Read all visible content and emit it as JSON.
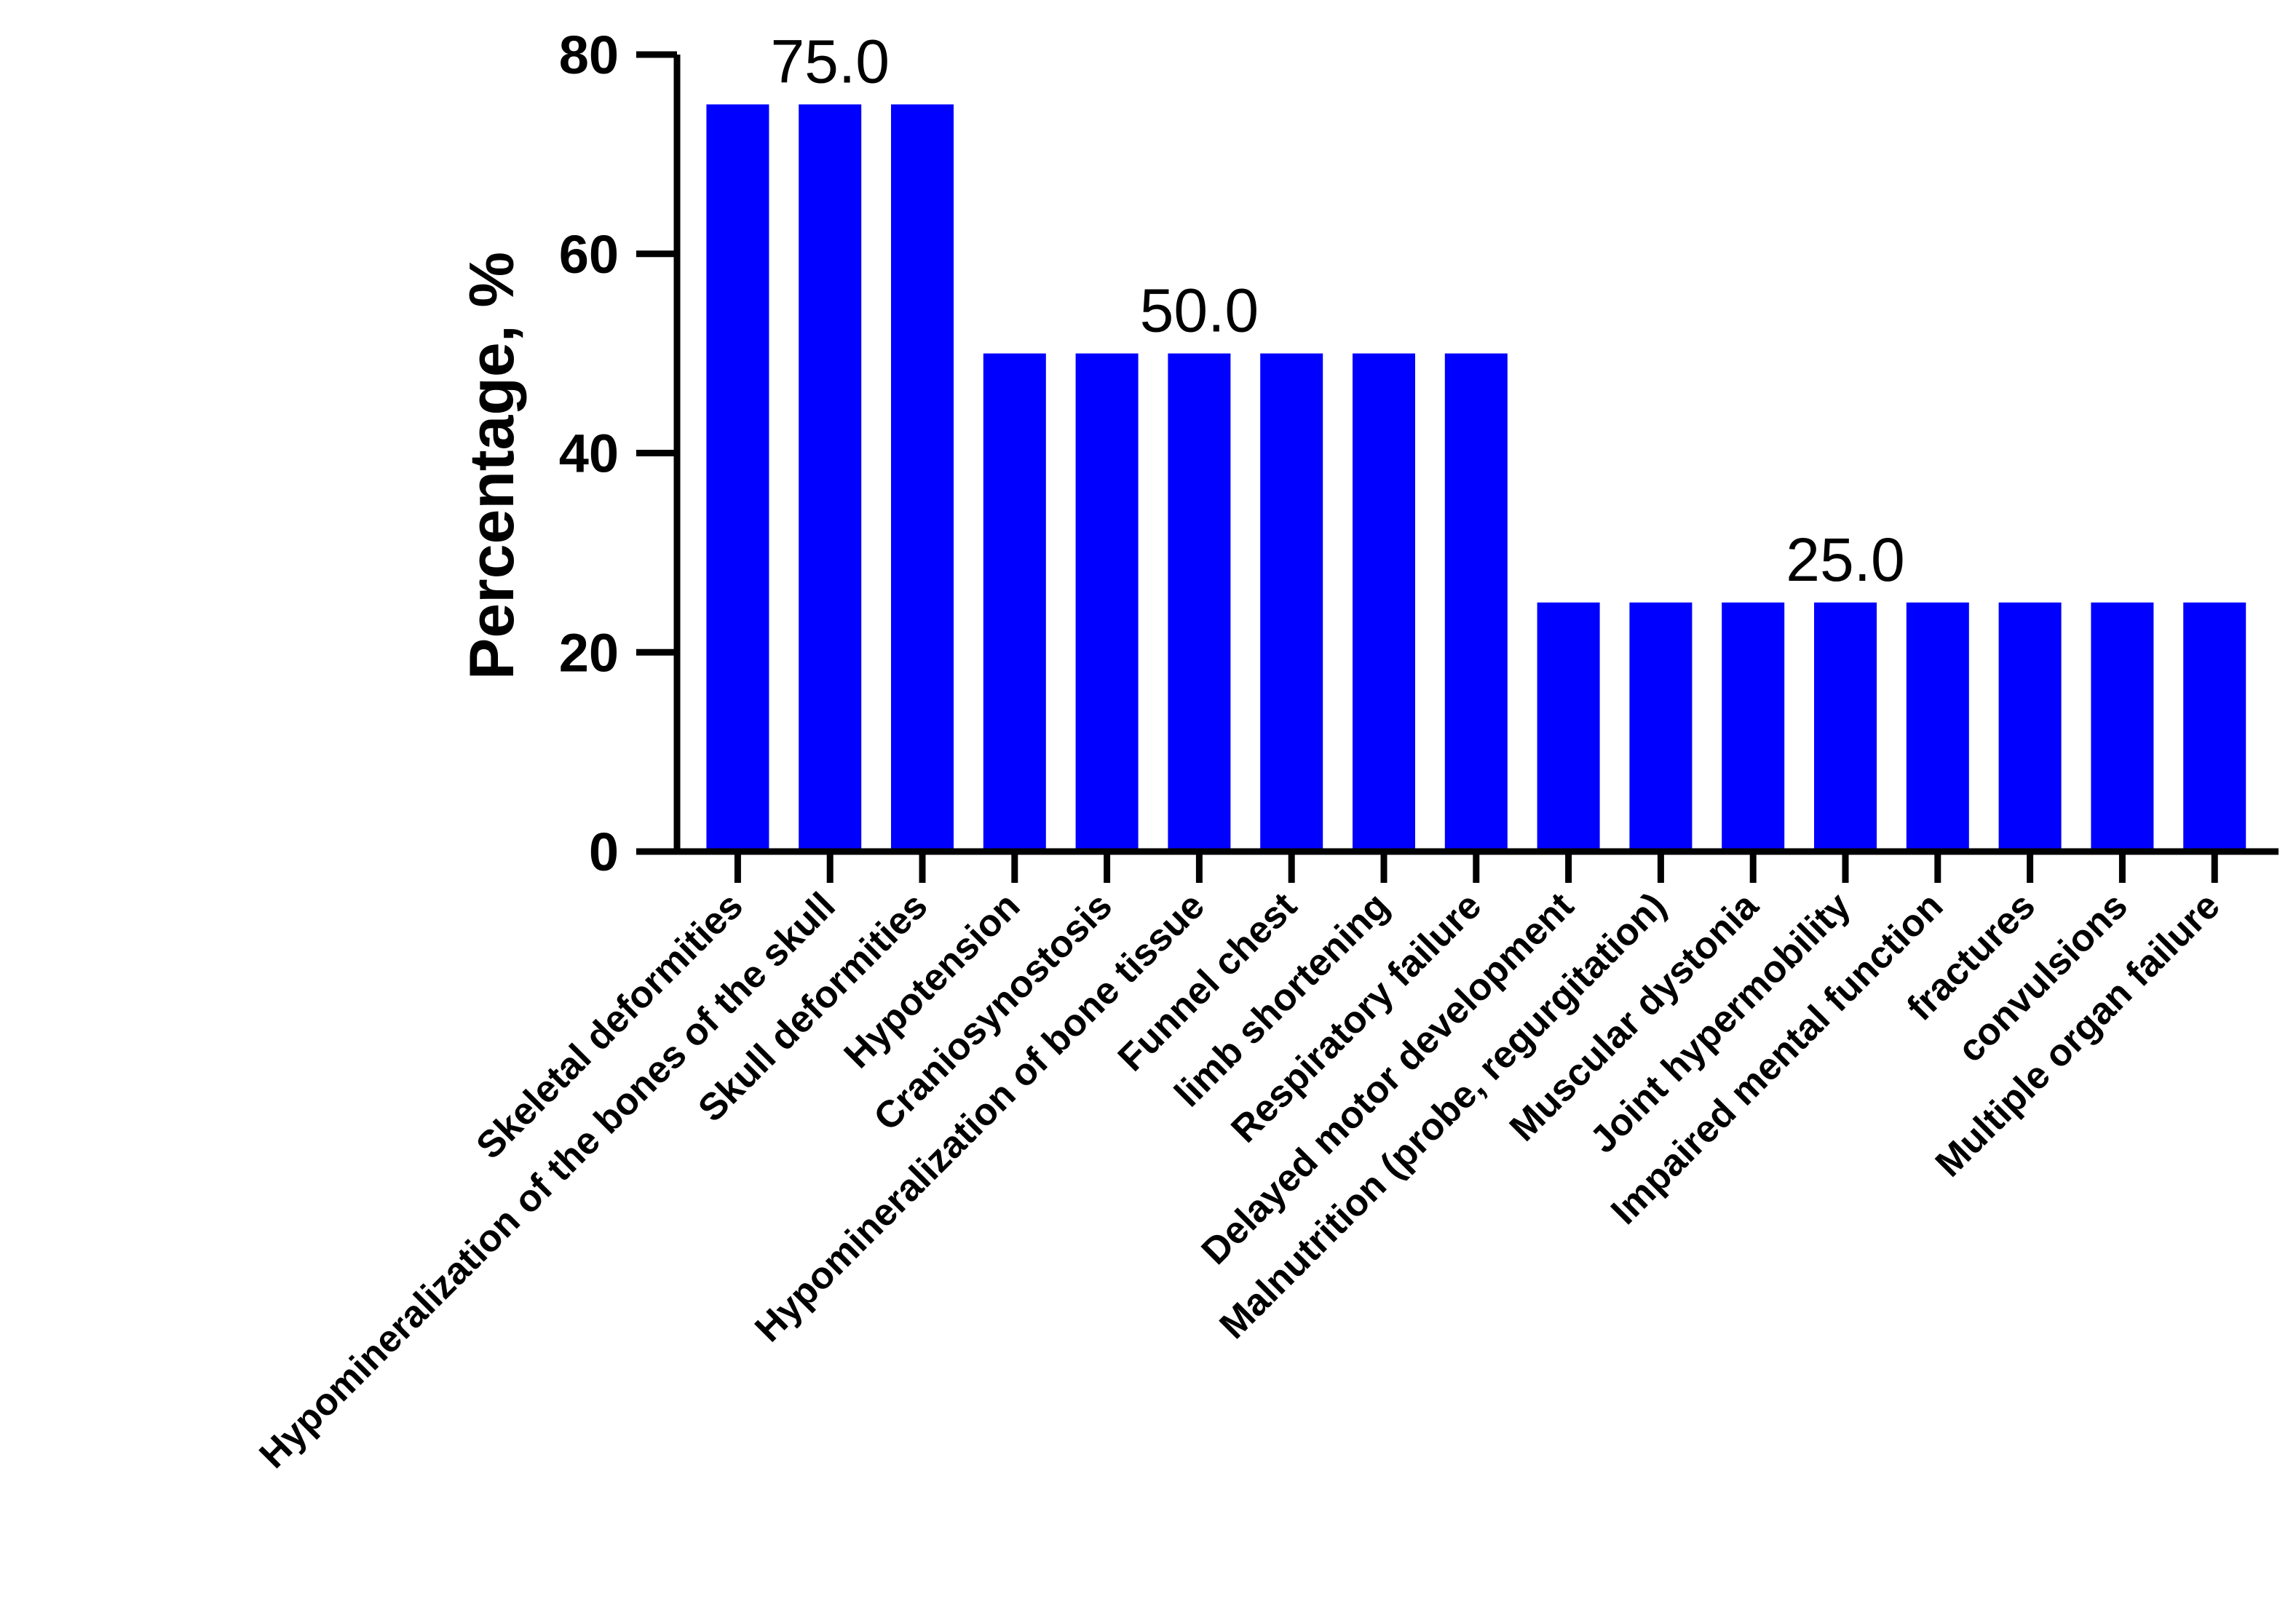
{
  "chart_data": {
    "type": "bar",
    "categories": [
      "Skeletal deformities",
      "Hypomineralization of the bones of the skull",
      "Skull deformities",
      "Hypotension",
      "Craniosynostosis",
      "Hypomineralization of bone tissue",
      "Funnel chest",
      "limb shortening",
      "Respiratory failure",
      "Delayed motor development",
      "Malnutrition (probe, regurgitation)",
      "Muscular dystonia",
      "Joint hypermobility",
      "Impaired mental function",
      "fractures",
      "convulsions",
      "Multiple organ failure"
    ],
    "values": [
      75,
      75,
      75,
      50,
      50,
      50,
      50,
      50,
      50,
      25,
      25,
      25,
      25,
      25,
      25,
      25,
      25
    ],
    "ylabel": "Percentage, %",
    "xlabel": "",
    "ylim": [
      0,
      80
    ],
    "yticks": [
      0,
      20,
      40,
      60,
      80
    ],
    "bar_color": "#0000ff",
    "grid": false,
    "annotations": [
      {
        "text": "75.0",
        "category_index": 1,
        "value": 75
      },
      {
        "text": "50.0",
        "category_index": 5,
        "value": 50
      },
      {
        "text": "25.0",
        "category_index": 12,
        "value": 25
      }
    ]
  }
}
